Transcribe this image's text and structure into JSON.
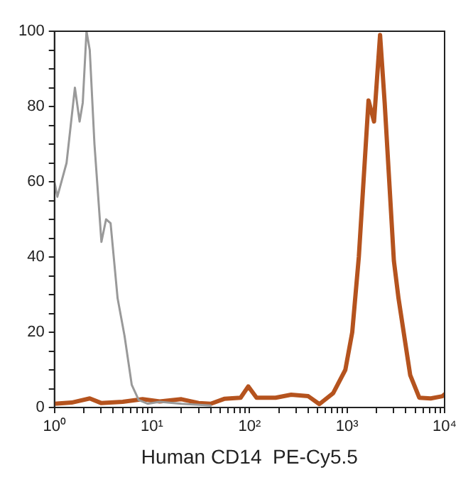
{
  "chart_data": {
    "type": "line",
    "xlabel": "Human CD14  PE-Cy5.5",
    "log": "x",
    "grid": false,
    "legend": false,
    "marker": "none",
    "line_style": "solid",
    "xlim": [
      1,
      10000
    ],
    "ylim": [
      0,
      100
    ],
    "xticks": [
      {
        "value": 1,
        "label": "10⁰"
      },
      {
        "value": 2,
        "label": null
      },
      {
        "value": 3,
        "label": null
      },
      {
        "value": 4,
        "label": null
      },
      {
        "value": 5,
        "label": null
      },
      {
        "value": 6,
        "label": null
      },
      {
        "value": 7,
        "label": null
      },
      {
        "value": 8,
        "label": null
      },
      {
        "value": 9,
        "label": null
      },
      {
        "value": 10,
        "label": "10¹"
      },
      {
        "value": 20,
        "label": null
      },
      {
        "value": 30,
        "label": null
      },
      {
        "value": 40,
        "label": null
      },
      {
        "value": 50,
        "label": null
      },
      {
        "value": 60,
        "label": null
      },
      {
        "value": 70,
        "label": null
      },
      {
        "value": 80,
        "label": null
      },
      {
        "value": 90,
        "label": null
      },
      {
        "value": 100,
        "label": "10²"
      },
      {
        "value": 200,
        "label": null
      },
      {
        "value": 300,
        "label": null
      },
      {
        "value": 400,
        "label": null
      },
      {
        "value": 500,
        "label": null
      },
      {
        "value": 600,
        "label": null
      },
      {
        "value": 700,
        "label": null
      },
      {
        "value": 800,
        "label": null
      },
      {
        "value": 900,
        "label": null
      },
      {
        "value": 1000,
        "label": "10³"
      },
      {
        "value": 2000,
        "label": null
      },
      {
        "value": 3000,
        "label": null
      },
      {
        "value": 4000,
        "label": null
      },
      {
        "value": 5000,
        "label": null
      },
      {
        "value": 6000,
        "label": null
      },
      {
        "value": 7000,
        "label": null
      },
      {
        "value": 8000,
        "label": null
      },
      {
        "value": 9000,
        "label": null
      },
      {
        "value": 10000,
        "label": "10⁴"
      }
    ],
    "yticks": [
      0,
      {
        "value": 5,
        "label": null
      },
      {
        "value": 10,
        "label": null
      },
      {
        "value": 15,
        "label": null
      },
      20,
      {
        "value": 25,
        "label": null
      },
      {
        "value": 30,
        "label": null
      },
      {
        "value": 35,
        "label": null
      },
      40,
      {
        "value": 45,
        "label": null
      },
      {
        "value": 50,
        "label": null
      },
      {
        "value": 55,
        "label": null
      },
      60,
      {
        "value": 65,
        "label": null
      },
      {
        "value": 70,
        "label": null
      },
      {
        "value": 75,
        "label": null
      },
      80,
      {
        "value": 85,
        "label": null
      },
      {
        "value": 90,
        "label": null
      },
      {
        "value": 95,
        "label": null
      },
      100
    ],
    "series": [
      {
        "color": "#999999",
        "x": [
          1,
          1.07,
          1.33,
          1.62,
          1.81,
          1.95,
          2.13,
          2.3,
          2.57,
          3.03,
          3.38,
          3.76,
          4.44,
          5.23,
          6.2,
          7.3,
          9,
          12,
          20,
          40
        ],
        "values": [
          60,
          56,
          65,
          85,
          76,
          81,
          100,
          95,
          70,
          44,
          50,
          49,
          29,
          19,
          6,
          2,
          1,
          1.5,
          1,
          0.5
        ]
      },
      {
        "color": "#b5531e",
        "x": [
          1,
          1.5,
          2.3,
          3,
          5,
          8,
          12,
          20,
          30,
          40,
          55,
          81,
          97,
          118,
          185,
          267,
          400,
          520,
          720,
          960,
          1130,
          1320,
          1660,
          1890,
          2180,
          2430,
          3020,
          3370,
          4440,
          5500,
          7200,
          9500,
          10000
        ],
        "values": [
          1,
          1.3,
          2.4,
          1.2,
          1.5,
          2.2,
          1.6,
          2.2,
          1.2,
          1,
          2.3,
          2.6,
          5.6,
          2.6,
          2.6,
          3.4,
          3,
          0.9,
          3.8,
          10,
          20,
          40,
          81.6,
          76,
          99,
          81,
          39,
          29,
          8.6,
          2.6,
          2.4,
          3,
          3.5
        ]
      }
    ]
  }
}
